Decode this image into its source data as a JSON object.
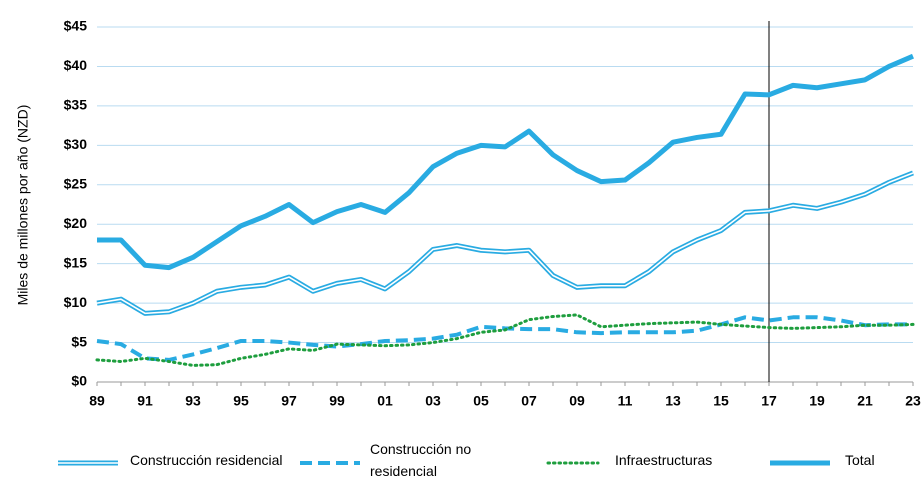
{
  "chart_data": {
    "type": "line",
    "y_label": "Miles de millones por año (NZD)",
    "categories": [
      "89",
      null,
      "91",
      null,
      "93",
      null,
      "95",
      null,
      "97",
      null,
      "99",
      null,
      "01",
      null,
      "03",
      null,
      "05",
      null,
      "07",
      null,
      "09",
      null,
      "11",
      null,
      "13",
      null,
      "15",
      null,
      "17",
      null,
      "19",
      null,
      "21",
      null,
      "23"
    ],
    "series": [
      {
        "name": "Construcción residencial",
        "color": "#29abe2",
        "style": "double",
        "values": [
          10,
          10.5,
          8.7,
          8.9,
          10,
          11.5,
          12,
          12.3,
          13.3,
          11.5,
          12.5,
          13,
          11.8,
          14,
          16.8,
          17.3,
          16.7,
          16.5,
          16.7,
          13.5,
          12,
          12.2,
          12.2,
          14,
          16.5,
          18,
          19.2,
          21.5,
          21.7,
          22.4,
          22,
          22.8,
          23.8,
          25.3,
          26.5
        ]
      },
      {
        "name": "Construcción no residencial",
        "color": "#29abe2",
        "style": "dashed",
        "values": [
          5.2,
          4.8,
          3,
          2.8,
          3.5,
          4.3,
          5.2,
          5.2,
          5,
          4.7,
          4.5,
          4.8,
          5.2,
          5.3,
          5.5,
          6,
          7,
          6.8,
          6.7,
          6.7,
          6.3,
          6.2,
          6.3,
          6.3,
          6.3,
          6.5,
          7.3,
          8.2,
          7.8,
          8.2,
          8.2,
          7.8,
          7.2,
          7.3,
          7.3
        ]
      },
      {
        "name": "Infraestructuras",
        "color": "#1e9e3e",
        "style": "dotted",
        "values": [
          2.8,
          2.6,
          3,
          2.6,
          2.1,
          2.2,
          3,
          3.5,
          4.2,
          4,
          4.8,
          4.7,
          4.6,
          4.7,
          5,
          5.5,
          6.3,
          6.6,
          7.9,
          8.3,
          8.5,
          7,
          7.2,
          7.4,
          7.5,
          7.6,
          7.3,
          7.1,
          6.9,
          6.8,
          6.9,
          7,
          7.2,
          7.2,
          7.3
        ]
      },
      {
        "name": "Total",
        "color": "#29abe2",
        "style": "solid",
        "values": [
          18,
          18,
          14.8,
          14.5,
          15.8,
          17.8,
          19.8,
          21,
          22.5,
          20.2,
          21.6,
          22.5,
          21.5,
          24,
          27.3,
          29,
          30,
          29.8,
          31.8,
          28.8,
          26.8,
          25.4,
          25.6,
          27.8,
          30.4,
          31,
          31.4,
          36.5,
          36.4,
          37.6,
          37.3,
          37.8,
          38.3,
          40,
          41.3
        ]
      }
    ],
    "ylim": [
      0,
      45
    ],
    "yticks": [
      {
        "value": 0,
        "label": "$0"
      },
      {
        "value": 5,
        "label": "$5"
      },
      {
        "value": 10,
        "label": "$10"
      },
      {
        "value": 15,
        "label": "$15"
      },
      {
        "value": 20,
        "label": "$20"
      },
      {
        "value": 25,
        "label": "$25"
      },
      {
        "value": 30,
        "label": "$30"
      },
      {
        "value": 35,
        "label": "$35"
      },
      {
        "value": 40,
        "label": "$40"
      },
      {
        "value": 45,
        "label": "$45"
      }
    ],
    "grid": true,
    "vline": "17",
    "legend": "bottom"
  }
}
